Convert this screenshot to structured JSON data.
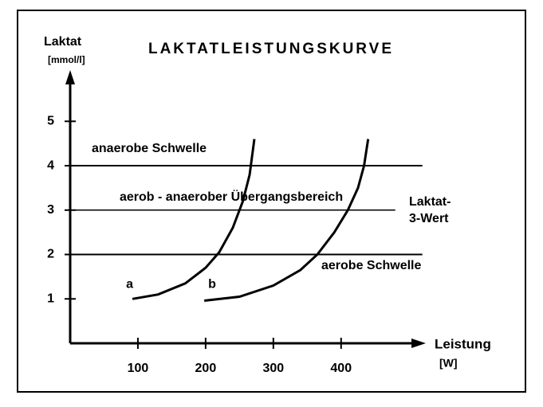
{
  "chart_data": {
    "type": "line",
    "title": "LAKTATLEISTUNGSKURVE",
    "y_label": [
      "Laktat",
      "[mmol/l]"
    ],
    "x_label": [
      "Leistung",
      "[W]"
    ],
    "xlim": [
      0,
      518
    ],
    "ylim": [
      0,
      6.1
    ],
    "xticks": [
      100,
      200,
      300,
      400
    ],
    "yticks": [
      1,
      2,
      3,
      4,
      5
    ],
    "grid": false,
    "series": [
      {
        "name": "a",
        "color": "#000000",
        "x": [
          92,
          130,
          170,
          200,
          220,
          240,
          255,
          265,
          272
        ],
        "values": [
          1.0,
          1.1,
          1.35,
          1.7,
          2.05,
          2.6,
          3.2,
          3.8,
          4.6
        ]
      },
      {
        "name": "b",
        "color": "#000000",
        "x": [
          198,
          250,
          300,
          340,
          365,
          390,
          410,
          425,
          434,
          440
        ],
        "values": [
          0.96,
          1.05,
          1.3,
          1.65,
          2.0,
          2.5,
          3.0,
          3.5,
          4.0,
          4.6
        ]
      }
    ],
    "reference_lines": [
      {
        "value": 4,
        "x_end": 520,
        "label": "anaerobe Schwelle"
      },
      {
        "value": 3,
        "x_end": 480,
        "label": "aerob - anaerober Übergangsbereich",
        "side_label": [
          "Laktat-",
          "3-Wert"
        ]
      },
      {
        "value": 2,
        "x_end": 520,
        "label": "aerobe Schwelle"
      }
    ]
  }
}
